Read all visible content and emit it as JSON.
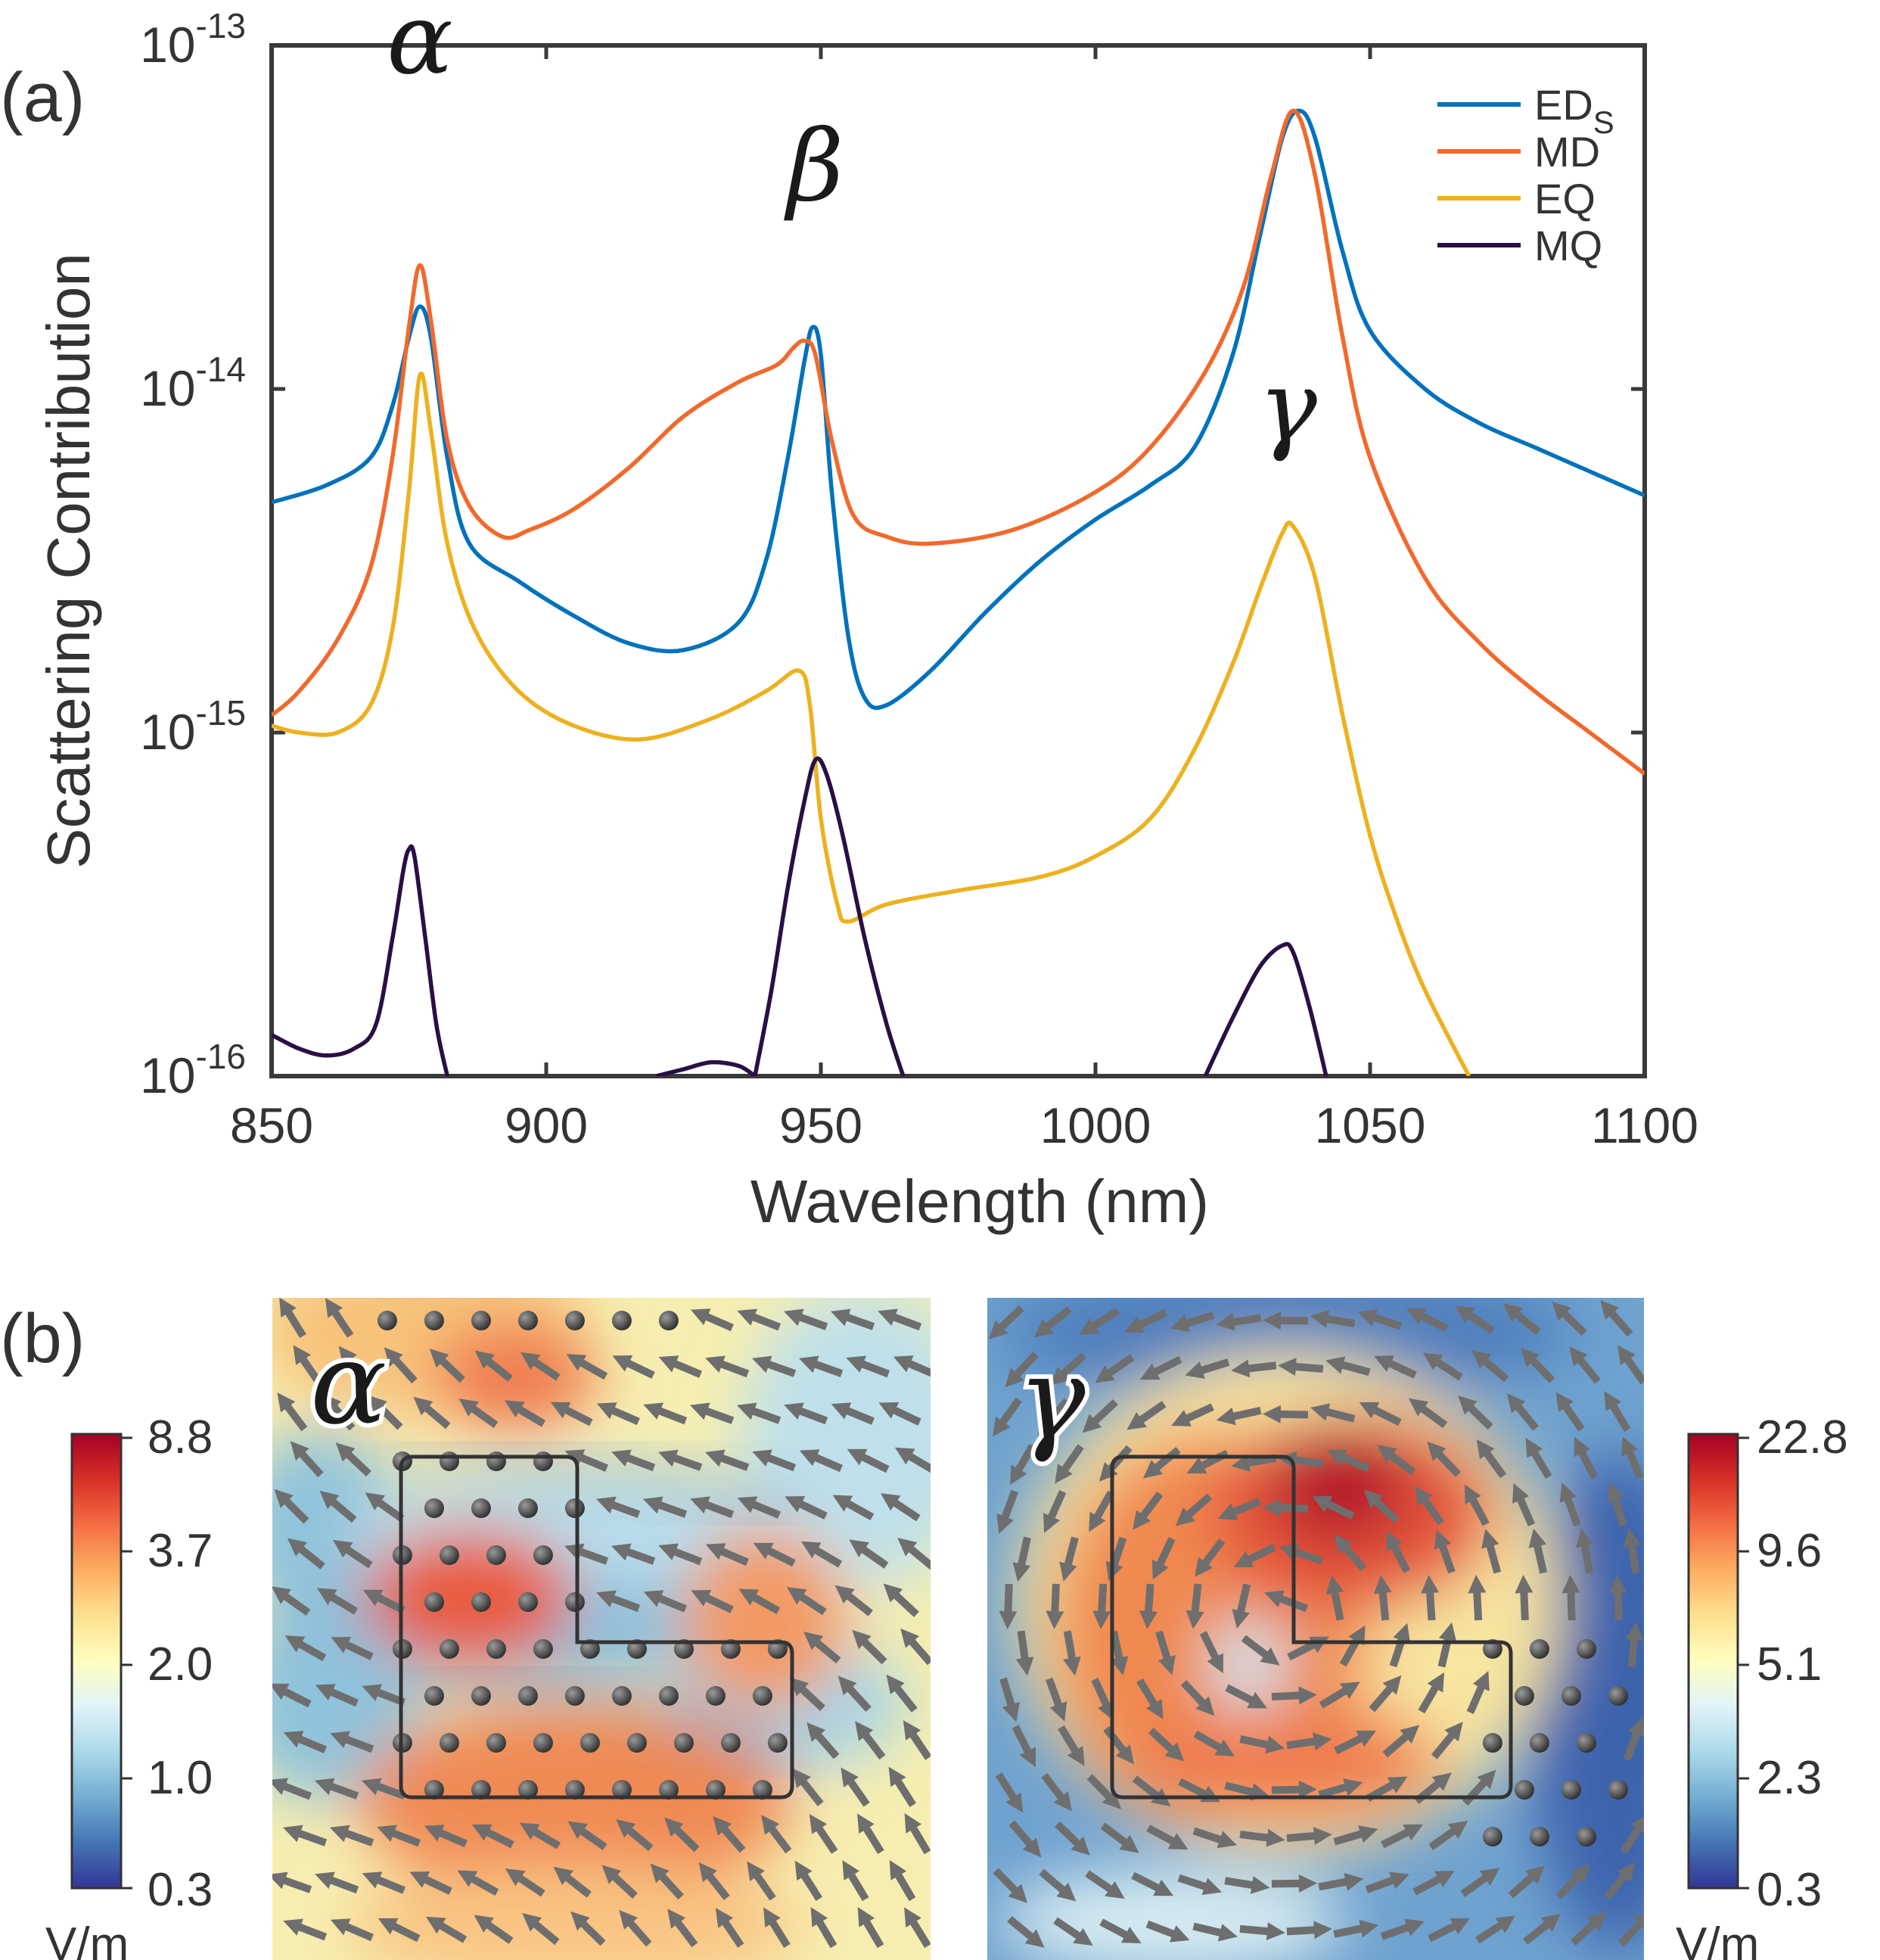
{
  "panel_labels": {
    "a": "(a)",
    "b": "(b)"
  },
  "chart_data": {
    "type": "line",
    "title": "",
    "xlabel": "Wavelength (nm)",
    "ylabel": "Scattering Contribution",
    "xlim": [
      850,
      1100
    ],
    "ylim_log10": [
      -16,
      -13
    ],
    "yscale": "log",
    "x_ticks": [
      "850",
      "900",
      "950",
      "1000",
      "1050",
      "1100"
    ],
    "y_ticks": [
      {
        "base": "10",
        "exp": "-13"
      },
      {
        "base": "10",
        "exp": "-14"
      },
      {
        "base": "10",
        "exp": "-15"
      },
      {
        "base": "10",
        "exp": "-16"
      }
    ],
    "legend": {
      "position": "top-right",
      "entries": [
        {
          "main": "ED",
          "sub": "S",
          "color": "#0072bd"
        },
        {
          "main": "MD",
          "sub": "",
          "color": "#f2692c"
        },
        {
          "main": "EQ",
          "sub": "",
          "color": "#edb120"
        },
        {
          "main": "MQ",
          "sub": "",
          "color": "#2a0f45"
        }
      ]
    },
    "annotations": [
      {
        "text": "α",
        "x": 877,
        "y_log10": -13.08
      },
      {
        "text": "β",
        "x": 949,
        "y_log10": -13.45
      },
      {
        "text": "γ",
        "x": 1035,
        "y_log10": -14.15
      }
    ],
    "series": [
      {
        "name": "ED_S",
        "color": "#0072bd",
        "points": [
          [
            850,
            -14.33
          ],
          [
            860,
            -14.28
          ],
          [
            868,
            -14.2
          ],
          [
            872,
            -14.05
          ],
          [
            875,
            -13.85
          ],
          [
            877,
            -13.76
          ],
          [
            879,
            -13.85
          ],
          [
            882,
            -14.2
          ],
          [
            886,
            -14.45
          ],
          [
            895,
            -14.56
          ],
          [
            905,
            -14.66
          ],
          [
            915,
            -14.74
          ],
          [
            925,
            -14.76
          ],
          [
            935,
            -14.68
          ],
          [
            940,
            -14.5
          ],
          [
            944,
            -14.2
          ],
          [
            947,
            -13.92
          ],
          [
            948.5,
            -13.82
          ],
          [
            950,
            -13.9
          ],
          [
            952,
            -14.3
          ],
          [
            955,
            -14.72
          ],
          [
            958,
            -14.9
          ],
          [
            962,
            -14.92
          ],
          [
            970,
            -14.82
          ],
          [
            980,
            -14.65
          ],
          [
            990,
            -14.5
          ],
          [
            1000,
            -14.38
          ],
          [
            1010,
            -14.28
          ],
          [
            1018,
            -14.17
          ],
          [
            1025,
            -13.9
          ],
          [
            1030,
            -13.55
          ],
          [
            1034,
            -13.27
          ],
          [
            1037,
            -13.19
          ],
          [
            1040,
            -13.27
          ],
          [
            1045,
            -13.6
          ],
          [
            1050,
            -13.83
          ],
          [
            1060,
            -14.0
          ],
          [
            1070,
            -14.1
          ],
          [
            1080,
            -14.17
          ],
          [
            1090,
            -14.24
          ],
          [
            1100,
            -14.31
          ]
        ]
      },
      {
        "name": "MD",
        "color": "#f2692c",
        "points": [
          [
            850,
            -14.95
          ],
          [
            855,
            -14.88
          ],
          [
            862,
            -14.73
          ],
          [
            868,
            -14.52
          ],
          [
            872,
            -14.2
          ],
          [
            875,
            -13.82
          ],
          [
            877,
            -13.64
          ],
          [
            879,
            -13.8
          ],
          [
            882,
            -14.15
          ],
          [
            886,
            -14.34
          ],
          [
            892,
            -14.43
          ],
          [
            897,
            -14.41
          ],
          [
            905,
            -14.35
          ],
          [
            915,
            -14.23
          ],
          [
            925,
            -14.08
          ],
          [
            935,
            -13.98
          ],
          [
            942,
            -13.93
          ],
          [
            945,
            -13.88
          ],
          [
            947,
            -13.86
          ],
          [
            949,
            -13.9
          ],
          [
            952,
            -14.15
          ],
          [
            956,
            -14.37
          ],
          [
            962,
            -14.43
          ],
          [
            970,
            -14.45
          ],
          [
            985,
            -14.41
          ],
          [
            1000,
            -14.3
          ],
          [
            1010,
            -14.17
          ],
          [
            1020,
            -13.95
          ],
          [
            1027,
            -13.7
          ],
          [
            1032,
            -13.38
          ],
          [
            1036,
            -13.19
          ],
          [
            1040,
            -13.38
          ],
          [
            1045,
            -13.85
          ],
          [
            1050,
            -14.2
          ],
          [
            1060,
            -14.55
          ],
          [
            1070,
            -14.74
          ],
          [
            1080,
            -14.88
          ],
          [
            1090,
            -15.0
          ],
          [
            1100,
            -15.12
          ]
        ]
      },
      {
        "name": "EQ",
        "color": "#edb120",
        "points": [
          [
            850,
            -14.98
          ],
          [
            855,
            -15.0
          ],
          [
            862,
            -15.0
          ],
          [
            868,
            -14.92
          ],
          [
            872,
            -14.7
          ],
          [
            875,
            -14.3
          ],
          [
            877,
            -13.96
          ],
          [
            879,
            -14.12
          ],
          [
            882,
            -14.45
          ],
          [
            887,
            -14.7
          ],
          [
            895,
            -14.88
          ],
          [
            905,
            -14.98
          ],
          [
            917,
            -15.02
          ],
          [
            930,
            -14.96
          ],
          [
            940,
            -14.88
          ],
          [
            946,
            -14.82
          ],
          [
            948,
            -14.92
          ],
          [
            950,
            -15.25
          ],
          [
            953,
            -15.5
          ],
          [
            955,
            -15.55
          ],
          [
            962,
            -15.5
          ],
          [
            975,
            -15.46
          ],
          [
            990,
            -15.42
          ],
          [
            1000,
            -15.36
          ],
          [
            1010,
            -15.25
          ],
          [
            1018,
            -15.05
          ],
          [
            1025,
            -14.8
          ],
          [
            1030,
            -14.58
          ],
          [
            1034,
            -14.42
          ],
          [
            1036,
            -14.4
          ],
          [
            1040,
            -14.55
          ],
          [
            1045,
            -14.95
          ],
          [
            1050,
            -15.3
          ],
          [
            1055,
            -15.55
          ],
          [
            1060,
            -15.75
          ],
          [
            1068,
            -16.0
          ]
        ]
      },
      {
        "name": "MQ",
        "color": "#2a0f45",
        "points": [
          [
            850,
            -15.88
          ],
          [
            855,
            -15.92
          ],
          [
            860,
            -15.94
          ],
          [
            865,
            -15.92
          ],
          [
            869,
            -15.85
          ],
          [
            872,
            -15.6
          ],
          [
            874,
            -15.4
          ],
          [
            875,
            -15.34
          ],
          [
            876,
            -15.36
          ],
          [
            878,
            -15.6
          ],
          [
            880,
            -15.85
          ],
          [
            882,
            -16.0
          ]
        ]
      },
      {
        "name": "MQ",
        "color": "#2a0f45",
        "points": [
          [
            920,
            -16.0
          ],
          [
            925,
            -15.98
          ],
          [
            930,
            -15.96
          ],
          [
            935,
            -15.97
          ],
          [
            938,
            -16.0
          ]
        ]
      },
      {
        "name": "MQ",
        "color": "#2a0f45",
        "points": [
          [
            938,
            -16.0
          ],
          [
            941,
            -15.75
          ],
          [
            944,
            -15.45
          ],
          [
            947,
            -15.2
          ],
          [
            949,
            -15.08
          ],
          [
            951,
            -15.12
          ],
          [
            954,
            -15.3
          ],
          [
            958,
            -15.6
          ],
          [
            962,
            -15.85
          ],
          [
            965,
            -16.0
          ]
        ]
      },
      {
        "name": "MQ",
        "color": "#2a0f45",
        "points": [
          [
            1020,
            -16.0
          ],
          [
            1025,
            -15.83
          ],
          [
            1030,
            -15.68
          ],
          [
            1034,
            -15.62
          ],
          [
            1036,
            -15.64
          ],
          [
            1039,
            -15.8
          ],
          [
            1042,
            -16.0
          ]
        ]
      }
    ]
  },
  "maps": [
    {
      "label": "α",
      "colorbar": {
        "ticks": [
          "8.8",
          "3.7",
          "2.0",
          "1.0",
          "0.3"
        ],
        "unit": "V/m"
      }
    },
    {
      "label": "γ",
      "colorbar": {
        "ticks": [
          "22.8",
          "9.6",
          "5.1",
          "2.3",
          "0.3"
        ],
        "unit": "V/m"
      }
    }
  ],
  "colormap": [
    "#313695",
    "#4575b4",
    "#74add1",
    "#abd9e9",
    "#e0f3f8",
    "#ffffbf",
    "#fee090",
    "#fdae61",
    "#f46d43",
    "#d73027",
    "#a50026"
  ]
}
